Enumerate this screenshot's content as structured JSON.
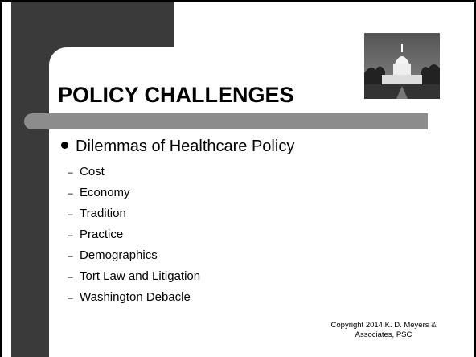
{
  "header": {
    "title": "POLICY CHALLENGES"
  },
  "body": {
    "bullet": "Dilemmas of Healthcare Policy",
    "items": [
      "Cost",
      "Economy",
      "Tradition",
      "Practice",
      "Demographics",
      "Tort Law and Litigation",
      "Washington Debacle"
    ]
  },
  "footer": {
    "lines": [
      "Copyright 2014 K. D. Meyers &",
      "Associates, PSC"
    ]
  }
}
